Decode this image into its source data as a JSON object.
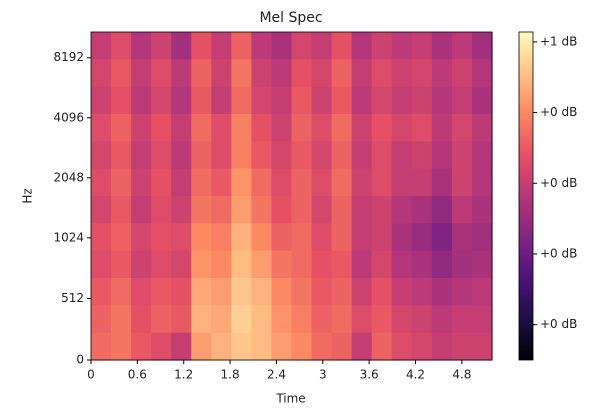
{
  "chart_data": {
    "type": "heatmap",
    "title": "Mel Spec",
    "xlabel": "Time",
    "ylabel": "Hz",
    "xlim": [
      0,
      5.19
    ],
    "xticks": [
      0,
      0.6,
      1.2,
      1.8,
      2.4,
      3,
      3.6,
      4.2,
      4.8
    ],
    "ylim": [
      0,
      11025
    ],
    "yticks": [
      0,
      512,
      1024,
      2048,
      4096,
      8192
    ],
    "yscale": "symlog",
    "colormap": "magma",
    "clim": [
      0.05,
      0.514
    ],
    "cticks": [
      {
        "value": 0.5,
        "label": "+1 dB"
      },
      {
        "value": 0.4,
        "label": "+0 dB"
      },
      {
        "value": 0.3,
        "label": "+0 dB"
      },
      {
        "value": 0.2,
        "label": "+0 dB"
      },
      {
        "value": 0.1,
        "label": "+0 dB"
      }
    ],
    "z": [
      [
        0.3,
        0.33,
        0.28,
        0.31,
        0.26,
        0.34,
        0.3,
        0.36,
        0.29,
        0.27,
        0.32,
        0.3,
        0.34,
        0.28,
        0.31,
        0.29,
        0.3,
        0.27,
        0.29,
        0.26
      ],
      [
        0.32,
        0.35,
        0.3,
        0.33,
        0.29,
        0.36,
        0.31,
        0.38,
        0.31,
        0.29,
        0.34,
        0.32,
        0.36,
        0.3,
        0.33,
        0.31,
        0.32,
        0.29,
        0.31,
        0.28
      ],
      [
        0.31,
        0.34,
        0.29,
        0.32,
        0.28,
        0.35,
        0.3,
        0.37,
        0.32,
        0.3,
        0.35,
        0.31,
        0.35,
        0.29,
        0.32,
        0.3,
        0.31,
        0.28,
        0.3,
        0.27
      ],
      [
        0.33,
        0.36,
        0.31,
        0.34,
        0.3,
        0.37,
        0.33,
        0.39,
        0.34,
        0.31,
        0.36,
        0.33,
        0.37,
        0.31,
        0.34,
        0.32,
        0.33,
        0.29,
        0.32,
        0.29
      ],
      [
        0.32,
        0.35,
        0.3,
        0.33,
        0.29,
        0.36,
        0.33,
        0.39,
        0.35,
        0.32,
        0.35,
        0.32,
        0.36,
        0.3,
        0.33,
        0.3,
        0.31,
        0.28,
        0.31,
        0.28
      ],
      [
        0.33,
        0.36,
        0.31,
        0.34,
        0.3,
        0.37,
        0.35,
        0.41,
        0.37,
        0.33,
        0.36,
        0.33,
        0.37,
        0.31,
        0.33,
        0.3,
        0.3,
        0.27,
        0.31,
        0.28
      ],
      [
        0.32,
        0.35,
        0.3,
        0.33,
        0.31,
        0.38,
        0.37,
        0.42,
        0.38,
        0.34,
        0.36,
        0.32,
        0.36,
        0.3,
        0.31,
        0.28,
        0.27,
        0.24,
        0.29,
        0.27
      ],
      [
        0.34,
        0.36,
        0.32,
        0.34,
        0.33,
        0.4,
        0.39,
        0.44,
        0.4,
        0.36,
        0.37,
        0.33,
        0.36,
        0.3,
        0.31,
        0.27,
        0.25,
        0.22,
        0.27,
        0.26
      ],
      [
        0.33,
        0.35,
        0.31,
        0.33,
        0.32,
        0.41,
        0.4,
        0.45,
        0.42,
        0.38,
        0.37,
        0.34,
        0.35,
        0.29,
        0.32,
        0.28,
        0.27,
        0.24,
        0.26,
        0.27
      ],
      [
        0.35,
        0.37,
        0.33,
        0.35,
        0.34,
        0.43,
        0.42,
        0.46,
        0.44,
        0.4,
        0.38,
        0.35,
        0.36,
        0.31,
        0.34,
        0.3,
        0.29,
        0.27,
        0.28,
        0.29
      ],
      [
        0.36,
        0.38,
        0.34,
        0.36,
        0.35,
        0.44,
        0.43,
        0.47,
        0.45,
        0.41,
        0.39,
        0.36,
        0.37,
        0.33,
        0.35,
        0.32,
        0.31,
        0.29,
        0.3,
        0.3
      ],
      [
        0.37,
        0.38,
        0.35,
        0.33,
        0.3,
        0.42,
        0.44,
        0.46,
        0.45,
        0.42,
        0.4,
        0.37,
        0.36,
        0.3,
        0.36,
        0.33,
        0.32,
        0.3,
        0.31,
        0.31
      ]
    ]
  }
}
